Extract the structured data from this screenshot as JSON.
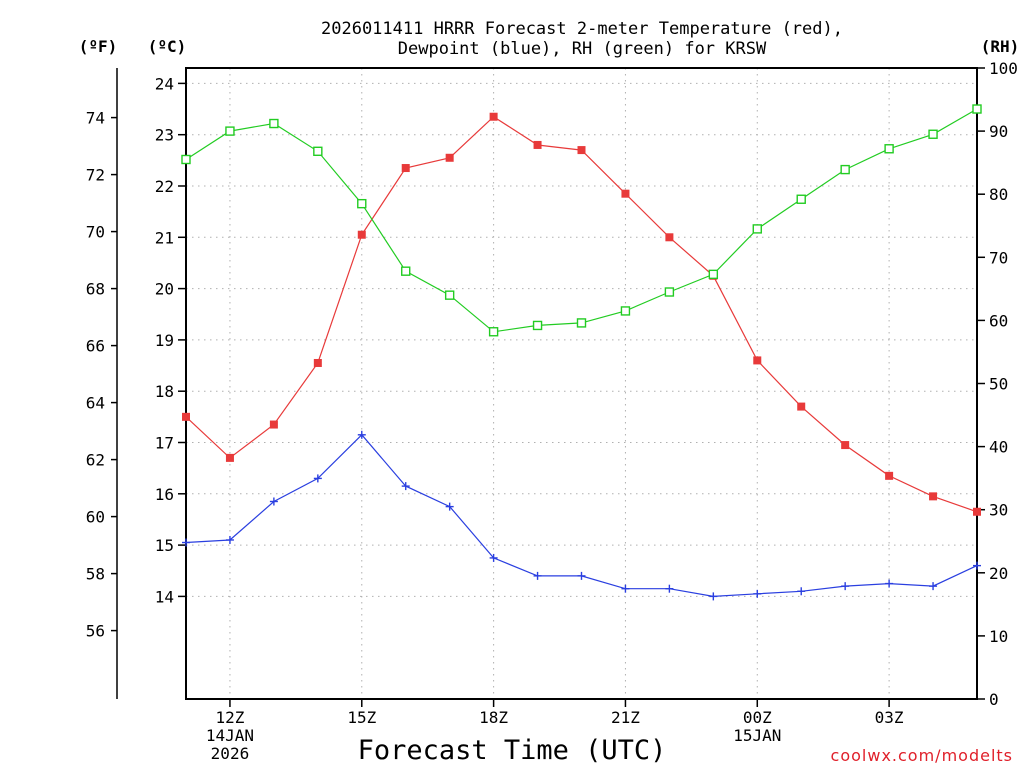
{
  "chart_data": {
    "type": "line",
    "title_line1": "2026011411 HRRR Forecast 2-meter Temperature (red),",
    "title_line2": "Dewpoint (blue), RH (green) for KRSW",
    "xlabel": "Forecast Time (UTC)",
    "credit": "coolwx.com/modelts",
    "units": {
      "fahrenheit": "(ºF)",
      "celsius": "(ºC)",
      "rh": "(RH)"
    },
    "x_hours": [
      11,
      12,
      13,
      14,
      15,
      16,
      17,
      18,
      19,
      20,
      21,
      22,
      23,
      24,
      25,
      26,
      27,
      28,
      29
    ],
    "x_range": [
      11,
      29
    ],
    "x_ticks": [
      {
        "x": 12,
        "label": "12Z",
        "sub1": "14JAN",
        "sub2": "2026"
      },
      {
        "x": 15,
        "label": "15Z",
        "sub1": "",
        "sub2": ""
      },
      {
        "x": 18,
        "label": "18Z",
        "sub1": "",
        "sub2": ""
      },
      {
        "x": 21,
        "label": "21Z",
        "sub1": "",
        "sub2": ""
      },
      {
        "x": 24,
        "label": "00Z",
        "sub1": "15JAN",
        "sub2": ""
      },
      {
        "x": 27,
        "label": "03Z",
        "sub1": "",
        "sub2": ""
      }
    ],
    "celsius_range": [
      12.0,
      24.3
    ],
    "celsius_ticks": [
      14,
      15,
      16,
      17,
      18,
      19,
      20,
      21,
      22,
      23,
      24
    ],
    "fahrenheit_ticks": [
      56,
      58,
      60,
      62,
      64,
      66,
      68,
      70,
      72,
      74
    ],
    "rh_range": [
      0,
      100
    ],
    "rh_ticks": [
      0,
      10,
      20,
      30,
      40,
      50,
      60,
      70,
      80,
      90,
      100
    ],
    "series": [
      {
        "name": "Temperature",
        "axis": "celsius",
        "color": "#e83a3a",
        "marker": "filled-square",
        "values": [
          17.5,
          16.7,
          17.35,
          18.55,
          21.05,
          22.35,
          22.55,
          23.35,
          22.8,
          22.7,
          21.85,
          21.0,
          20.25,
          18.6,
          17.7,
          16.95,
          16.35,
          15.95,
          15.65
        ]
      },
      {
        "name": "Dewpoint",
        "axis": "celsius",
        "color": "#2a3fe0",
        "marker": "plus",
        "values": [
          15.05,
          15.1,
          15.85,
          16.3,
          17.15,
          16.15,
          15.75,
          14.75,
          14.4,
          14.4,
          14.15,
          14.15,
          14.0,
          14.05,
          14.1,
          14.2,
          14.25,
          14.2,
          14.6
        ]
      },
      {
        "name": "RH",
        "axis": "rh",
        "color": "#22cc22",
        "marker": "open-square",
        "values": [
          85.5,
          90.0,
          91.2,
          86.8,
          78.5,
          67.8,
          64.0,
          58.2,
          59.2,
          59.6,
          61.5,
          64.5,
          67.3,
          74.5,
          79.2,
          83.9,
          87.2,
          89.5,
          93.5
        ]
      }
    ]
  }
}
